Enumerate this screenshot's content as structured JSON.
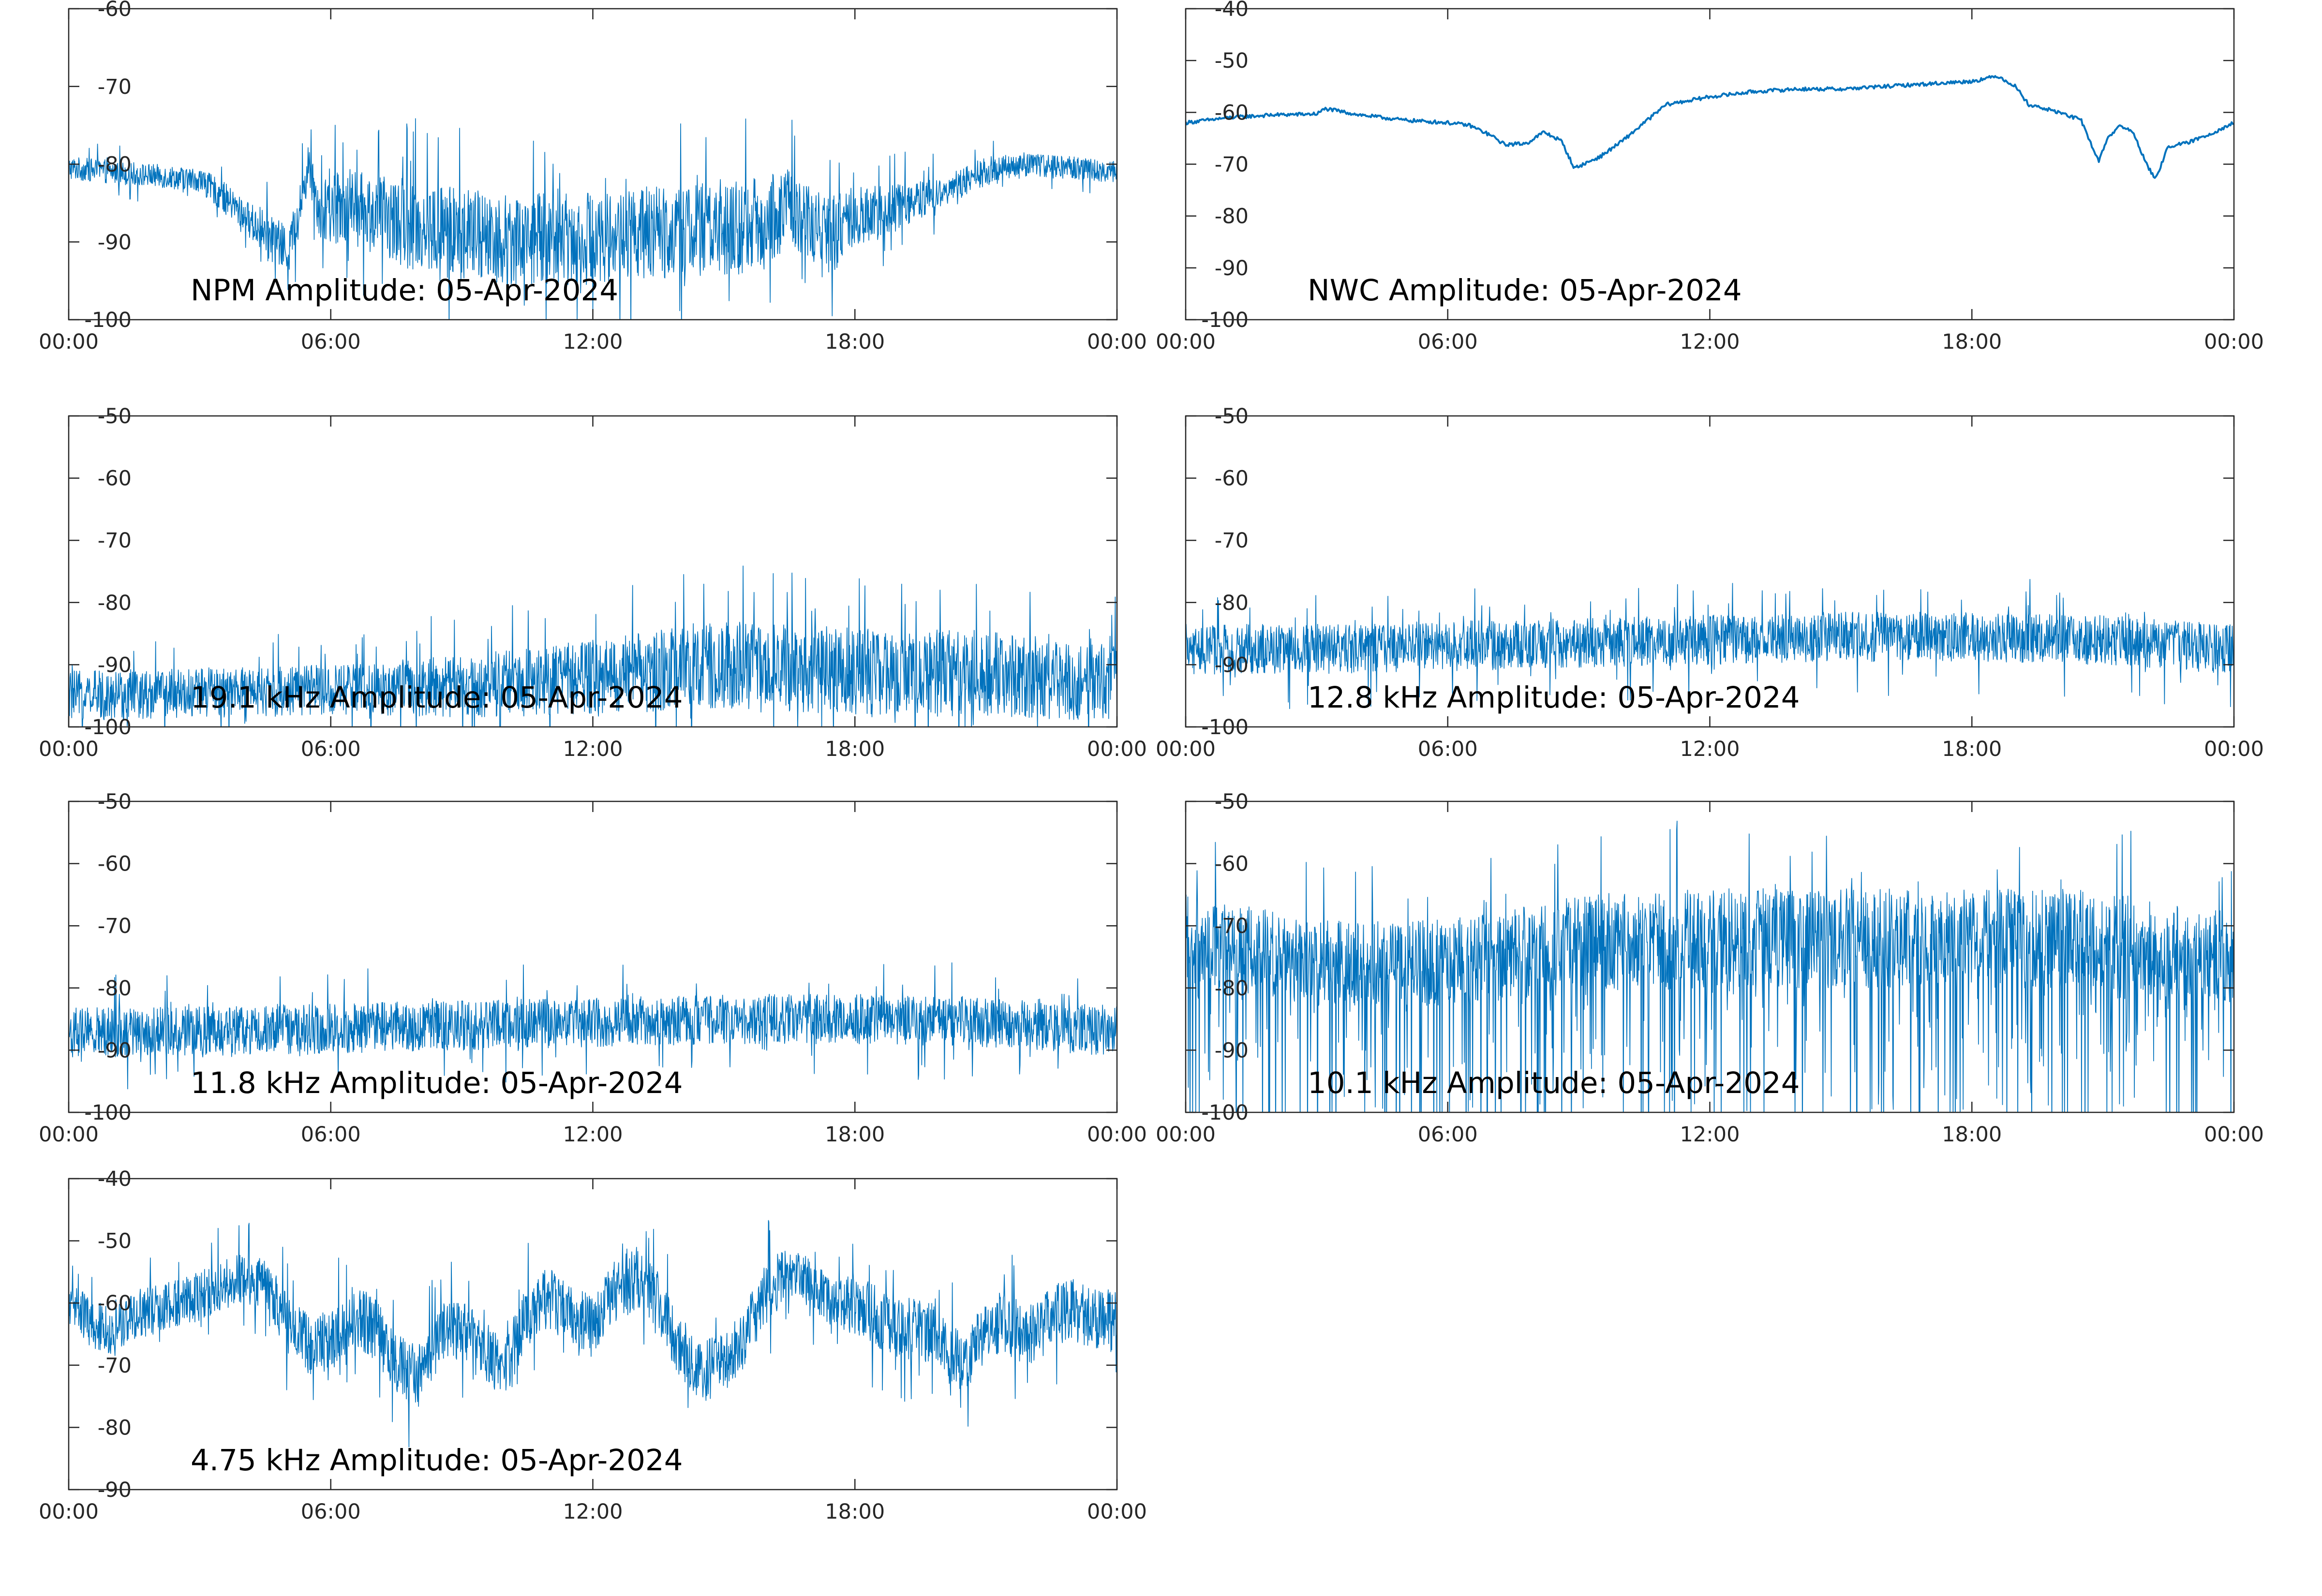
{
  "figure": {
    "line_color": "#0072BD",
    "axes_color": "#262626",
    "background": "#ffffff"
  },
  "chart_data": [
    {
      "type": "line",
      "title": "NPM Amplitude: 05-Apr-2024",
      "xlabel": "",
      "ylabel": "",
      "x_ticks": [
        "00:00",
        "06:00",
        "12:00",
        "18:00",
        "00:00"
      ],
      "xlim": [
        0,
        24
      ],
      "ylim": [
        -100,
        -60
      ],
      "y_ticks": [
        "-60",
        "-70",
        "-80",
        "-90",
        "-100"
      ],
      "grid": false,
      "series": [
        {
          "x": [
            0,
            1,
            2,
            3,
            3.5,
            4,
            4.5,
            5,
            5.2,
            5.5,
            5.8,
            6.2,
            7,
            8,
            9,
            10,
            11,
            12,
            13,
            14,
            15,
            16,
            16.5,
            17,
            17.5,
            18,
            19,
            20,
            21,
            22,
            23,
            24
          ],
          "values": [
            -80.5,
            -81,
            -81.5,
            -82,
            -84,
            -86.5,
            -89,
            -91,
            -88,
            -80,
            -87,
            -85,
            -86.5,
            -88,
            -89,
            -89.5,
            -89.5,
            -89.5,
            -89,
            -88.5,
            -88.5,
            -87.5,
            -85,
            -88,
            -89,
            -87,
            -85.5,
            -83.5,
            -81,
            -80,
            -80.5,
            -81
          ],
          "spread": [
            1.5,
            1.5,
            1.5,
            1.5,
            2,
            2,
            3,
            3,
            3,
            3,
            4,
            5,
            5,
            6,
            6,
            6,
            6,
            6,
            6,
            6,
            6,
            6,
            5,
            5,
            5,
            4,
            3,
            2,
            2,
            1.5,
            1.5,
            1.5
          ]
        }
      ]
    },
    {
      "type": "line",
      "title": "NWC Amplitude: 05-Apr-2024",
      "xlabel": "",
      "ylabel": "",
      "x_ticks": [
        "00:00",
        "06:00",
        "12:00",
        "18:00",
        "00:00"
      ],
      "xlim": [
        0,
        24
      ],
      "ylim": [
        -100,
        -40
      ],
      "y_ticks": [
        "-40",
        "-50",
        "-60",
        "-70",
        "-80",
        "-90",
        "-100"
      ],
      "grid": false,
      "series": [
        {
          "x": [
            0,
            1,
            2,
            3,
            3.2,
            4,
            5,
            6,
            6.5,
            7,
            7.3,
            7.8,
            8.2,
            8.6,
            8.9,
            9.5,
            10,
            10.5,
            11,
            12,
            13,
            14,
            15,
            16,
            17,
            18,
            18.6,
            19,
            19.3,
            20,
            20.5,
            20.9,
            21.1,
            21.4,
            21.7,
            22,
            22.2,
            22.5,
            22.9,
            23.5,
            24
          ],
          "values": [
            -62,
            -61,
            -60.5,
            -60.3,
            -59.3,
            -60.5,
            -61.5,
            -62,
            -62.5,
            -64.5,
            -66.2,
            -66,
            -63.8,
            -65.5,
            -70.8,
            -68.5,
            -65.5,
            -62,
            -58.5,
            -57,
            -56,
            -55.5,
            -55.5,
            -55,
            -54.5,
            -54,
            -53,
            -55,
            -58.5,
            -60,
            -61.5,
            -69.5,
            -65,
            -62.5,
            -64,
            -70,
            -73,
            -66.5,
            -66,
            -64,
            -62
          ]
        }
      ]
    },
    {
      "type": "line",
      "title": "19.1 kHz Amplitude: 05-Apr-2024",
      "xlabel": "",
      "ylabel": "",
      "x_ticks": [
        "00:00",
        "06:00",
        "12:00",
        "18:00",
        "00:00"
      ],
      "xlim": [
        0,
        24
      ],
      "ylim": [
        -100,
        -50
      ],
      "y_ticks": [
        "-50",
        "-60",
        "-70",
        "-80",
        "-90",
        "-100"
      ],
      "grid": false,
      "series": [
        {
          "x": [
            0,
            3,
            6,
            9,
            12,
            15,
            18,
            21,
            24
          ],
          "values": [
            -95,
            -94.5,
            -94,
            -93.5,
            -92,
            -90,
            -91,
            -91.5,
            -93
          ],
          "spread": [
            4,
            4,
            4,
            5,
            6,
            7,
            7,
            7,
            6
          ]
        }
      ]
    },
    {
      "type": "line",
      "title": "12.8 kHz Amplitude: 05-Apr-2024",
      "xlabel": "",
      "ylabel": "",
      "x_ticks": [
        "00:00",
        "06:00",
        "12:00",
        "18:00",
        "00:00"
      ],
      "xlim": [
        0,
        24
      ],
      "ylim": [
        -100,
        -50
      ],
      "y_ticks": [
        "-50",
        "-60",
        "-70",
        "-80",
        "-90",
        "-100"
      ],
      "grid": false,
      "series": [
        {
          "x": [
            0,
            3,
            6,
            9,
            12,
            15,
            18,
            21,
            24
          ],
          "values": [
            -87.5,
            -87.5,
            -87,
            -86.5,
            -86,
            -85.5,
            -85.5,
            -86,
            -87.5
          ],
          "spread": [
            4,
            4,
            4,
            4,
            4,
            4,
            4,
            4,
            4
          ]
        }
      ]
    },
    {
      "type": "line",
      "title": "11.8 kHz Amplitude: 05-Apr-2024",
      "xlabel": "",
      "ylabel": "",
      "x_ticks": [
        "00:00",
        "06:00",
        "12:00",
        "18:00",
        "00:00"
      ],
      "xlim": [
        0,
        24
      ],
      "ylim": [
        -100,
        -50
      ],
      "y_ticks": [
        "-50",
        "-60",
        "-70",
        "-80",
        "-90",
        "-100"
      ],
      "grid": false,
      "series": [
        {
          "x": [
            0,
            3,
            6,
            9,
            12,
            15,
            18,
            21,
            24
          ],
          "values": [
            -87,
            -87,
            -86.5,
            -86,
            -85.5,
            -85,
            -85,
            -85.5,
            -87
          ],
          "spread": [
            4,
            4,
            4,
            4,
            4,
            4,
            4,
            4,
            4
          ]
        }
      ]
    },
    {
      "type": "line",
      "title": "10.1 kHz Amplitude: 05-Apr-2024",
      "xlabel": "",
      "ylabel": "",
      "x_ticks": [
        "00:00",
        "06:00",
        "12:00",
        "18:00",
        "00:00"
      ],
      "xlim": [
        0,
        24
      ],
      "ylim": [
        -100,
        -50
      ],
      "y_ticks": [
        "-50",
        "-60",
        "-70",
        "-80",
        "-90",
        "-100"
      ],
      "grid": false,
      "series": [
        {
          "x": [
            0,
            3,
            6,
            9,
            12,
            15,
            18,
            21,
            24
          ],
          "values": [
            -72,
            -76,
            -76,
            -73,
            -72,
            -72,
            -72,
            -72,
            -76
          ],
          "spread": [
            7,
            7,
            7,
            8,
            8,
            8,
            8,
            8,
            7
          ]
        }
      ]
    },
    {
      "type": "line",
      "title": "4.75 kHz Amplitude: 05-Apr-2024",
      "xlabel": "",
      "ylabel": "",
      "x_ticks": [
        "00:00",
        "06:00",
        "12:00",
        "18:00",
        "00:00"
      ],
      "xlim": [
        0,
        24
      ],
      "ylim": [
        -90,
        -40
      ],
      "y_ticks": [
        "-40",
        "-50",
        "-60",
        "-70",
        "-80",
        "-90"
      ],
      "grid": false,
      "series": [
        {
          "x": [
            0,
            0.5,
            1,
            1.5,
            2,
            2.5,
            3,
            3.5,
            4,
            4.5,
            5,
            5.5,
            6,
            6.5,
            7,
            7.5,
            8,
            8.5,
            9,
            9.5,
            10,
            10.5,
            11,
            11.5,
            12,
            12.5,
            13,
            13.5,
            14,
            14.5,
            15,
            15.5,
            16,
            16.5,
            17,
            17.5,
            18,
            18.5,
            19,
            19.5,
            20,
            20.5,
            21,
            21.5,
            22,
            22.5,
            23,
            23.5,
            24
          ],
          "values": [
            -60,
            -63,
            -65,
            -62,
            -61,
            -60,
            -59,
            -57,
            -56,
            -57,
            -63,
            -67,
            -66,
            -62,
            -64,
            -70,
            -72,
            -65,
            -64,
            -68,
            -70,
            -62,
            -59,
            -62,
            -64,
            -58,
            -56,
            -60,
            -67,
            -71,
            -70,
            -65,
            -58,
            -55,
            -57,
            -60,
            -60,
            -62,
            -64,
            -64,
            -66,
            -70,
            -64,
            -63,
            -66,
            -62,
            -61,
            -63,
            -63
          ],
          "spread": [
            4,
            4,
            4,
            4,
            4,
            4,
            4,
            4,
            4,
            4,
            5,
            5,
            5,
            5,
            5,
            5,
            5,
            5,
            5,
            5,
            5,
            5,
            5,
            5,
            5,
            5,
            5,
            5,
            5,
            5,
            5,
            5,
            5,
            4,
            4,
            4,
            5,
            5,
            5,
            5,
            5,
            5,
            5,
            5,
            5,
            5,
            5,
            5,
            5
          ]
        }
      ]
    }
  ]
}
